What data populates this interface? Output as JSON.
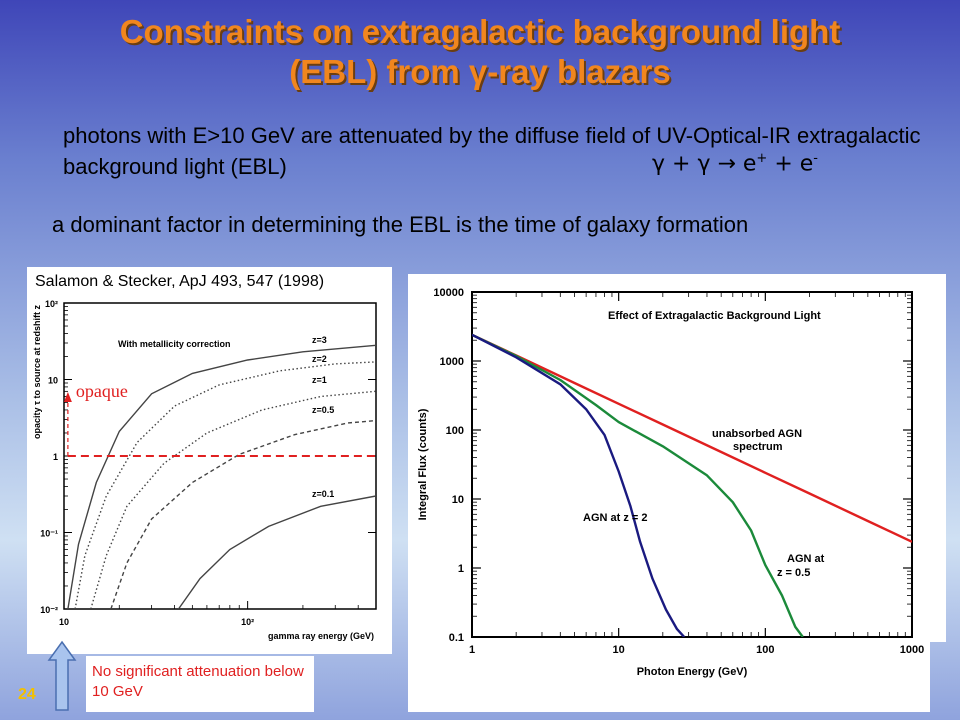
{
  "slide": {
    "title_line1": "Constraints on extragalactic background light",
    "title_line2": "(EBL) from γ-ray blazars",
    "intro": "photons with E>10 GeV are attenuated by the diffuse field of UV-Optical-IR extragalactic background light (EBL)",
    "reaction": {
      "base": "γ + γ → e",
      "sup1": "+",
      "mid": " + e",
      "sup2": "-"
    },
    "dominant": "a dominant factor in determining the EBL is the time of galaxy formation",
    "citation": "Salamon & Stecker, ApJ 493, 547 (1998)",
    "note": "No significant attenuation below 10 GeV",
    "page_number": "24",
    "opaque_label": "opaque"
  },
  "colors": {
    "title": "#f1861e",
    "red": "#e02020",
    "navy": "#1a1a80",
    "green": "#1b8a3a",
    "arrow_fill": "#a9c4ee",
    "page_number": "#f3c000"
  },
  "icons": {
    "upward_arrow": "arrow-up-icon"
  },
  "chart_data": [
    {
      "type": "line",
      "title": "With metallicity correction",
      "xlabel": "gamma ray energy (GeV)",
      "ylabel": "opacity τ to source at redshift z",
      "xscale": "log",
      "yscale": "log",
      "xlim": [
        10,
        500
      ],
      "ylim": [
        0.01,
        100
      ],
      "xticks": [
        "10",
        "10²"
      ],
      "yticks": [
        "10⁻²",
        "10⁻¹",
        "1",
        "10",
        "10²"
      ],
      "series": [
        {
          "name": "z=3",
          "style": "solid",
          "points": [
            [
              10.5,
              0.01
            ],
            [
              12,
              0.07
            ],
            [
              15,
              0.45
            ],
            [
              20,
              2.1
            ],
            [
              30,
              6.5
            ],
            [
              50,
              12
            ],
            [
              100,
              18
            ],
            [
              200,
              23
            ],
            [
              500,
              28
            ]
          ]
        },
        {
          "name": "z=2",
          "style": "dotted",
          "points": [
            [
              11.5,
              0.01
            ],
            [
              13,
              0.05
            ],
            [
              17,
              0.3
            ],
            [
              25,
              1.5
            ],
            [
              40,
              4.5
            ],
            [
              70,
              8.5
            ],
            [
              150,
              13
            ],
            [
              300,
              16
            ],
            [
              500,
              17
            ]
          ]
        },
        {
          "name": "z=1",
          "style": "dotted",
          "points": [
            [
              14,
              0.01
            ],
            [
              17,
              0.05
            ],
            [
              22,
              0.22
            ],
            [
              35,
              0.8
            ],
            [
              60,
              2.0
            ],
            [
              120,
              4.0
            ],
            [
              250,
              6.0
            ],
            [
              500,
              7
            ]
          ]
        },
        {
          "name": "z=0.5",
          "style": "dashed",
          "points": [
            [
              18,
              0.01
            ],
            [
              22,
              0.04
            ],
            [
              30,
              0.15
            ],
            [
              50,
              0.45
            ],
            [
              90,
              1.05
            ],
            [
              180,
              1.9
            ],
            [
              350,
              2.7
            ],
            [
              500,
              2.9
            ]
          ]
        },
        {
          "name": "z=0.1",
          "style": "solid",
          "points": [
            [
              42,
              0.01
            ],
            [
              55,
              0.025
            ],
            [
              80,
              0.06
            ],
            [
              130,
              0.12
            ],
            [
              250,
              0.22
            ],
            [
              500,
              0.3
            ]
          ]
        }
      ],
      "annotations": {
        "threshold_tau": 1,
        "threshold_energy": 10.5
      }
    },
    {
      "type": "line",
      "title": "Effect of Extragalactic Background Light",
      "xlabel": "Photon Energy (GeV)",
      "ylabel": "Integral Flux (counts)",
      "xscale": "log",
      "yscale": "log",
      "xlim": [
        1,
        1000
      ],
      "ylim": [
        0.1,
        10000
      ],
      "xticks": [
        "1",
        "10",
        "100",
        "1000"
      ],
      "yticks": [
        "0.1",
        "1",
        "10",
        "100",
        "1000",
        "10000"
      ],
      "series": [
        {
          "name": "unabsorbed AGN spectrum",
          "color": "#e02020",
          "points": [
            [
              1,
              2400
            ],
            [
              2,
              1200
            ],
            [
              5,
              480
            ],
            [
              10,
              240
            ],
            [
              20,
              120
            ],
            [
              50,
              48
            ],
            [
              100,
              24
            ],
            [
              200,
              12
            ],
            [
              500,
              4.8
            ],
            [
              1000,
              2.4
            ]
          ]
        },
        {
          "name": "AGN at z = 0.5",
          "color": "#1b8a3a",
          "points": [
            [
              1,
              2400
            ],
            [
              2,
              1180
            ],
            [
              4,
              530
            ],
            [
              7,
              230
            ],
            [
              10,
              130
            ],
            [
              20,
              58
            ],
            [
              40,
              22
            ],
            [
              60,
              9
            ],
            [
              80,
              3.5
            ],
            [
              100,
              1.1
            ],
            [
              130,
              0.4
            ],
            [
              160,
              0.14
            ],
            [
              180,
              0.1
            ]
          ]
        },
        {
          "name": "AGN at z = 2",
          "color": "#1a1a80",
          "points": [
            [
              1,
              2400
            ],
            [
              2,
              1130
            ],
            [
              4,
              460
            ],
            [
              6,
              200
            ],
            [
              8,
              85
            ],
            [
              10,
              25
            ],
            [
              12,
              8
            ],
            [
              14,
              2.4
            ],
            [
              17,
              0.7
            ],
            [
              21,
              0.25
            ],
            [
              25,
              0.13
            ],
            [
              28,
              0.1
            ]
          ]
        }
      ],
      "labels": [
        "unabsorbed AGN spectrum",
        "AGN at z = 2",
        "AGN at z = 0.5"
      ]
    }
  ]
}
